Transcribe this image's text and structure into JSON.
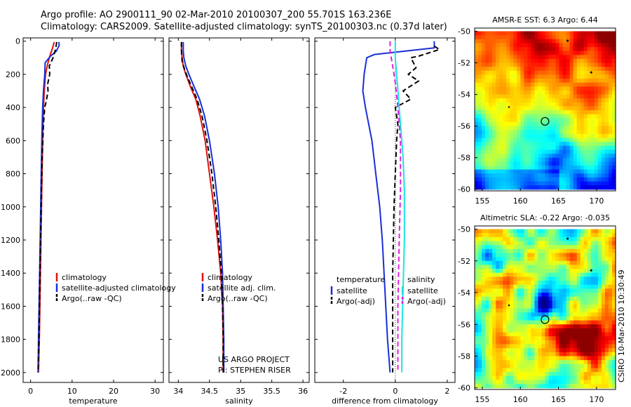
{
  "header": {
    "line1": "Argo profile: AO 2900111_90 02-Mar-2010 20100307_200 55.701S 163.236E",
    "line2": "Climatology: CARS2009. Satellite-adjusted climatology: synTS_20100303.nc (0.37d later)"
  },
  "side_label": "CSIRO 10-Mar-2010 10:30:49",
  "colors": {
    "climatology": "#e01010",
    "satellite": "#1a2ed6",
    "argo": "#000000",
    "sal_satellite": "#19e3e3",
    "sal_argo": "#e01fe0"
  },
  "chart_data": [
    {
      "type": "line",
      "xlabel": "temperature",
      "xticks": [
        0,
        10,
        20,
        30
      ],
      "xlim": [
        -1.8,
        32
      ],
      "yticks": [
        0,
        200,
        400,
        600,
        800,
        1000,
        1200,
        1400,
        1600,
        1800,
        2000
      ],
      "ylim": [
        2060,
        -20
      ],
      "legend": [
        "climatology",
        "satellite-adjusted climatology",
        "Argo(..raw -QC)"
      ],
      "series": [
        {
          "name": "climatology",
          "color": "#e01010",
          "dash": false,
          "points": [
            [
              5.7,
              5
            ],
            [
              5.3,
              40
            ],
            [
              4.5,
              100
            ],
            [
              4.0,
              150
            ],
            [
              3.6,
              200
            ],
            [
              3.3,
              300
            ],
            [
              3.1,
              400
            ],
            [
              2.9,
              600
            ],
            [
              2.7,
              900
            ],
            [
              2.5,
              1200
            ],
            [
              2.3,
              1500
            ],
            [
              2.1,
              1800
            ],
            [
              1.9,
              2000
            ]
          ]
        },
        {
          "name": "satellite-adjusted climatology",
          "color": "#1a2ed6",
          "dash": false,
          "points": [
            [
              6.8,
              5
            ],
            [
              6.9,
              25
            ],
            [
              6.2,
              60
            ],
            [
              4.8,
              90
            ],
            [
              3.5,
              130
            ],
            [
              3.4,
              200
            ],
            [
              3.1,
              300
            ],
            [
              2.9,
              400
            ],
            [
              2.7,
              600
            ],
            [
              2.5,
              900
            ],
            [
              2.3,
              1200
            ],
            [
              2.1,
              1500
            ],
            [
              1.9,
              1800
            ],
            [
              1.8,
              2000
            ]
          ]
        },
        {
          "name": "Argo(..raw -QC)",
          "color": "#000000",
          "dash": true,
          "points": [
            [
              6.3,
              5
            ],
            [
              6.0,
              50
            ],
            [
              5.4,
              100
            ],
            [
              4.5,
              150
            ],
            [
              4.6,
              200
            ],
            [
              4.1,
              260
            ],
            [
              4.2,
              300
            ],
            [
              3.8,
              360
            ],
            [
              3.4,
              400
            ],
            [
              3.1,
              500
            ],
            [
              2.8,
              700
            ],
            [
              2.6,
              900
            ],
            [
              2.4,
              1200
            ],
            [
              2.2,
              1500
            ],
            [
              2.0,
              1800
            ],
            [
              1.8,
              2000
            ]
          ]
        }
      ]
    },
    {
      "type": "line",
      "xlabel": "salinity",
      "xticks": [
        34,
        34.5,
        35,
        35.5,
        36
      ],
      "xticklabels": [
        "34",
        "34.5",
        "35",
        "35.5",
        "36"
      ],
      "xlim": [
        33.85,
        36.1
      ],
      "yticks": [
        0,
        200,
        400,
        600,
        800,
        1000,
        1200,
        1400,
        1600,
        1800,
        2000
      ],
      "ylim": [
        2060,
        -20
      ],
      "legend": [
        "climatology",
        "satellite adj. clim.",
        "Argo(..raw -QC)"
      ],
      "annotations": [
        "US ARGO PROJECT",
        "PI: STEPHEN RISER"
      ],
      "series": [
        {
          "name": "climatology",
          "color": "#e01010",
          "dash": false,
          "points": [
            [
              34.05,
              5
            ],
            [
              34.05,
              50
            ],
            [
              34.06,
              100
            ],
            [
              34.08,
              150
            ],
            [
              34.12,
              200
            ],
            [
              34.2,
              280
            ],
            [
              34.28,
              350
            ],
            [
              34.35,
              450
            ],
            [
              34.43,
              600
            ],
            [
              34.5,
              800
            ],
            [
              34.57,
              1000
            ],
            [
              34.63,
              1200
            ],
            [
              34.68,
              1400
            ],
            [
              34.71,
              1600
            ],
            [
              34.72,
              1800
            ],
            [
              34.72,
              2000
            ]
          ]
        },
        {
          "name": "satellite adj. clim.",
          "color": "#1a2ed6",
          "dash": false,
          "points": [
            [
              34.08,
              5
            ],
            [
              34.08,
              60
            ],
            [
              34.09,
              100
            ],
            [
              34.12,
              150
            ],
            [
              34.17,
              200
            ],
            [
              34.26,
              280
            ],
            [
              34.34,
              350
            ],
            [
              34.42,
              450
            ],
            [
              34.5,
              600
            ],
            [
              34.58,
              800
            ],
            [
              34.64,
              1000
            ],
            [
              34.68,
              1200
            ],
            [
              34.71,
              1400
            ],
            [
              34.72,
              1600
            ],
            [
              34.73,
              1800
            ],
            [
              34.73,
              2000
            ]
          ]
        },
        {
          "name": "Argo(..raw -QC)",
          "color": "#000000",
          "dash": true,
          "points": [
            [
              34.05,
              5
            ],
            [
              34.05,
              60
            ],
            [
              34.06,
              120
            ],
            [
              34.1,
              170
            ],
            [
              34.15,
              220
            ],
            [
              34.22,
              280
            ],
            [
              34.3,
              350
            ],
            [
              34.38,
              450
            ],
            [
              34.46,
              600
            ],
            [
              34.54,
              800
            ],
            [
              34.6,
              1000
            ],
            [
              34.65,
              1200
            ],
            [
              34.69,
              1400
            ],
            [
              34.71,
              1600
            ],
            [
              34.72,
              1800
            ],
            [
              34.72,
              2000
            ]
          ]
        }
      ]
    },
    {
      "type": "line",
      "xlabel": "difference from climatology",
      "xticks": [
        -2,
        0,
        2
      ],
      "xlim": [
        -3.1,
        2.3
      ],
      "yticks": [
        0,
        200,
        400,
        600,
        800,
        1000,
        1200,
        1400,
        1600,
        1800,
        2000
      ],
      "ylim": [
        2060,
        -20
      ],
      "legend_groups": [
        {
          "title": "temperature",
          "items": [
            "satellite",
            "Argo(-adj)"
          ]
        },
        {
          "title": "salinity",
          "items": [
            "satellite",
            "Argo(-adj)"
          ]
        }
      ],
      "series": [
        {
          "name": "temperature satellite",
          "color": "#1a2ed6",
          "dash": false,
          "points": [
            [
              1.5,
              0
            ],
            [
              1.5,
              40
            ],
            [
              -0.8,
              80
            ],
            [
              -1.1,
              100
            ],
            [
              -1.2,
              200
            ],
            [
              -1.25,
              300
            ],
            [
              -1.15,
              400
            ],
            [
              -0.9,
              600
            ],
            [
              -0.75,
              800
            ],
            [
              -0.6,
              1000
            ],
            [
              -0.5,
              1200
            ],
            [
              -0.4,
              1500
            ],
            [
              -0.3,
              1800
            ],
            [
              -0.2,
              2000
            ]
          ]
        },
        {
          "name": "temperature Argo(-adj)",
          "color": "#000000",
          "dash": true,
          "points": [
            [
              1.5,
              30
            ],
            [
              1.7,
              50
            ],
            [
              0.9,
              90
            ],
            [
              0.6,
              100
            ],
            [
              0.8,
              160
            ],
            [
              0.5,
              200
            ],
            [
              0.9,
              240
            ],
            [
              0.3,
              300
            ],
            [
              0.6,
              350
            ],
            [
              0.0,
              400
            ],
            [
              0.1,
              500
            ],
            [
              0.05,
              600
            ],
            [
              0.0,
              800
            ],
            [
              -0.05,
              1000
            ],
            [
              -0.1,
              1400
            ],
            [
              -0.1,
              1800
            ],
            [
              -0.1,
              2000
            ]
          ]
        },
        {
          "name": "salinity satellite",
          "color": "#19e3e3",
          "dash": false,
          "points": [
            [
              0.0,
              0
            ],
            [
              0.0,
              100
            ],
            [
              0.05,
              200
            ],
            [
              0.1,
              300
            ],
            [
              0.2,
              500
            ],
            [
              0.3,
              700
            ],
            [
              0.35,
              900
            ],
            [
              0.35,
              1200
            ],
            [
              0.3,
              1500
            ],
            [
              0.25,
              1800
            ],
            [
              0.25,
              2000
            ]
          ]
        },
        {
          "name": "salinity Argo(-adj)",
          "color": "#e01fe0",
          "dash": true,
          "points": [
            [
              -0.2,
              0
            ],
            [
              -0.2,
              60
            ],
            [
              -0.1,
              150
            ],
            [
              0.0,
              250
            ],
            [
              0.1,
              400
            ],
            [
              0.2,
              600
            ],
            [
              0.2,
              900
            ],
            [
              0.15,
              1200
            ],
            [
              0.1,
              1600
            ],
            [
              0.1,
              2000
            ]
          ]
        }
      ]
    }
  ],
  "maps": [
    {
      "title": "AMSR-E SST: 6.3 Argo: 6.44",
      "type": "heatmap",
      "xticks": [
        155,
        160,
        165,
        170
      ],
      "yticks": [
        -50,
        -52,
        -54,
        -56,
        -58,
        -60
      ],
      "xlim": [
        154,
        172.5
      ],
      "ylim": [
        -60.1,
        -49.8
      ],
      "profile": [
        163.236,
        -55.701
      ]
    },
    {
      "title": "Altimetric SLA: -0.22 Argo: -0.035",
      "type": "heatmap",
      "xticks": [
        155,
        160,
        165,
        170
      ],
      "yticks": [
        -50,
        -52,
        -54,
        -56,
        -58,
        -60
      ],
      "xlim": [
        154,
        172.5
      ],
      "ylim": [
        -60.1,
        -49.8
      ],
      "profile": [
        163.236,
        -55.701
      ]
    }
  ]
}
